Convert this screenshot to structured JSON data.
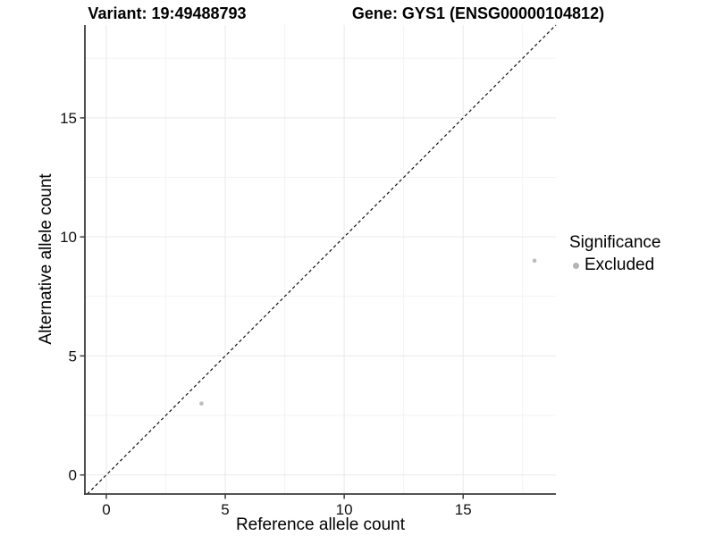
{
  "titles": {
    "variant": "Variant: 19:49488793",
    "gene": "Gene: GYS1 (ENSG00000104812)"
  },
  "chart_data": {
    "type": "scatter",
    "xlabel": "Reference allele count",
    "ylabel": "Alternative allele count",
    "xlim": [
      -0.9,
      18.9
    ],
    "ylim": [
      -0.8,
      18.9
    ],
    "x_major_ticks": [
      0,
      5,
      10,
      15
    ],
    "y_major_ticks": [
      0,
      5,
      10,
      15
    ],
    "x_minor_ticks": [
      2.5,
      7.5,
      12.5,
      17.5
    ],
    "y_minor_ticks": [
      2.5,
      7.5,
      12.5,
      17.5
    ],
    "x_tick_labels": [
      "0",
      "5",
      "10",
      "15"
    ],
    "y_tick_labels": [
      "0",
      "5",
      "10",
      "15"
    ],
    "grid": true,
    "series": [
      {
        "name": "Excluded",
        "color": "#bdbdbd",
        "points": [
          {
            "x": 4,
            "y": 3
          },
          {
            "x": 18,
            "y": 9
          }
        ]
      }
    ],
    "reference_line": {
      "slope": 1,
      "intercept": 0,
      "linetype": "dashed",
      "color": "#111111"
    },
    "legend": {
      "title": "Significance",
      "position": "right",
      "items": [
        {
          "label": "Excluded",
          "color": "#b3b3b3"
        }
      ]
    },
    "styles": {
      "point_radius": 2.3,
      "grid_major_color": "#e9e9e9",
      "grid_minor_color": "#f3f3f3",
      "axis_line_color": "#3c3c3c",
      "tick_color": "#3c3c3c",
      "tick_label_color": "#111111"
    }
  }
}
